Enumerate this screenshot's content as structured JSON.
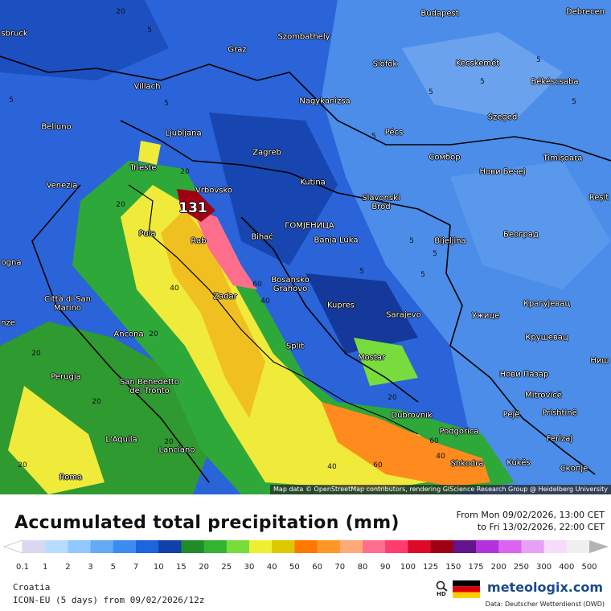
{
  "map": {
    "cities": [
      "sbruck",
      "Graz",
      "Szombathely",
      "Budapest",
      "Debrecen",
      "Villach",
      "Siófok",
      "Kecskemét",
      "Nagykanizsa",
      "Békéscsaba",
      "Belluno",
      "Ljubljana",
      "Pécs",
      "Szeged",
      "Zagreb",
      "Сомбор",
      "Нови Бечеј",
      "Timișoara",
      "Trieste",
      "Venezia",
      "Vrbovsko",
      "Kutina",
      "Slavonski Brod",
      "Reșit",
      "ГОМЈЕНИЦА",
      "Bihać",
      "Pula",
      "Banja Luka",
      "Bijeljina",
      "Београд",
      "Rab",
      "ogna",
      "Bosansko Grahovo",
      "Zadar",
      "Città di San Marino",
      "Kupres",
      "Sarajevo",
      "Крагујевац",
      "Ужице",
      "nze",
      "Ancona",
      "Крушевац",
      "Split",
      "Mostar",
      "Perugia",
      "Нови Пазар",
      "Ниш",
      "San Benedetto del Tronto",
      "Mitrovicë",
      "Dubrovnik",
      "Pejë",
      "Prishtinë",
      "Podgorica",
      "L'Aquila",
      "Lanciano",
      "Ferizaj",
      "Shkodra",
      "Kukës",
      "Скопје",
      "Roma"
    ],
    "contour_labels": [
      20,
      5,
      5,
      5,
      5,
      5,
      5,
      5,
      5,
      5,
      5,
      5,
      20,
      20,
      131,
      40,
      60,
      40,
      20,
      20,
      20,
      20,
      20,
      60,
      40,
      40,
      60,
      20,
      5
    ],
    "attribution": "Map data © OpenStreetMap contributors, rendering GIScience Research Group @ Heidelberg University"
  },
  "legend": {
    "title": "Accumulated total precipitation (mm)",
    "period_from": "From Mon 09/02/2026, 13:00 CET",
    "period_to": "to Fri 13/02/2026, 22:00 CET",
    "values": [
      0.1,
      1,
      2,
      3,
      5,
      7,
      10,
      15,
      20,
      25,
      30,
      40,
      50,
      60,
      70,
      80,
      90,
      100,
      125,
      150,
      175,
      200,
      250,
      300,
      400,
      500
    ],
    "colors": [
      "#ffffff",
      "#d8d8f0",
      "#b8dcff",
      "#90c8ff",
      "#64aaf5",
      "#3c8cf0",
      "#1e64dc",
      "#1040a8",
      "#1e8c28",
      "#32b432",
      "#78dc3c",
      "#f0f032",
      "#dcc800",
      "#ff7800",
      "#ff9628",
      "#ffaa78",
      "#ff6e8c",
      "#ff3c6e",
      "#dc0a28",
      "#a00014",
      "#64148c",
      "#b432dc",
      "#dc64f0",
      "#e6a0f5",
      "#f5dcfa",
      "#f0f0f0",
      "#b4b4b4"
    ]
  },
  "footer": {
    "region": "Croatia",
    "model": "ICON-EU (5 days) from 09/02/2026/12z",
    "brand": "meteologix.com",
    "hd": "HD",
    "source": "Data: Deutscher Wetterdienst (DWD)"
  }
}
